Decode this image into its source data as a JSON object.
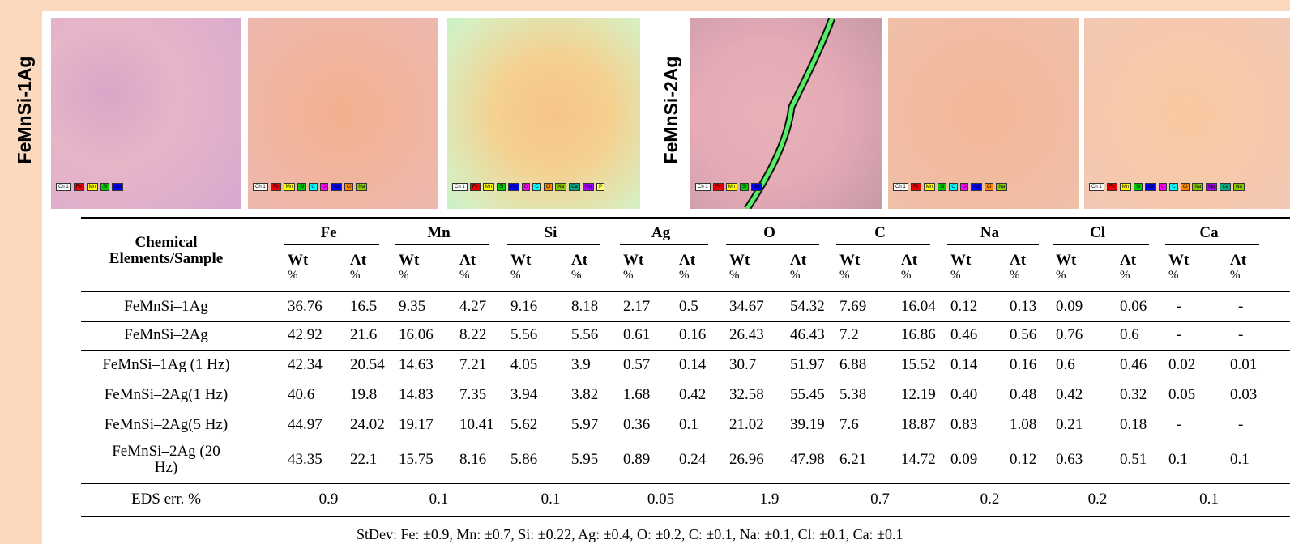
{
  "panels": [
    {
      "label": "FeMnSi-1Ag",
      "images": [
        {
          "legend": [
            "Ch 1",
            "Fe",
            "Mn",
            "Si",
            "Ag"
          ]
        },
        {
          "legend": [
            "Ch 1",
            "Fe",
            "Mn",
            "Si",
            "C",
            "O",
            "Ag",
            "Cl",
            "Na"
          ]
        },
        {
          "legend": [
            "Ch 1",
            "Fe",
            "Mn",
            "Si",
            "Ag",
            "O",
            "C",
            "Cl",
            "Na",
            "Ca",
            "Mg",
            "P"
          ]
        }
      ]
    },
    {
      "label": "FeMnSi-2Ag",
      "images": [
        {
          "legend": [
            "Ch 1",
            "Fe",
            "Mn",
            "Si",
            "Ag"
          ]
        },
        {
          "legend": [
            "Ch 1",
            "Fe",
            "Mn",
            "Si",
            "C",
            "O",
            "Ag",
            "Cl",
            "Na"
          ]
        },
        {
          "legend": [
            "Ch 1",
            "Fe",
            "Mn",
            "Si",
            "Ag",
            "O",
            "C",
            "Cl",
            "Na",
            "Mg",
            "Ca",
            "Na"
          ]
        }
      ]
    }
  ],
  "table": {
    "corner": "Chemical Elements/Sample",
    "elements": [
      "Fe",
      "Mn",
      "Si",
      "Ag",
      "O",
      "C",
      "Na",
      "Cl",
      "Ca"
    ],
    "sub": [
      "Wt",
      "At"
    ],
    "sub_unit": "%",
    "rows": [
      {
        "sample": "FeMnSi–1Ag",
        "cells": [
          "36.76",
          "16.5",
          "9.35",
          "4.27",
          "9.16",
          "8.18",
          "2.17",
          "0.5",
          "34.67",
          "54.32",
          "7.69",
          "16.04",
          "0.12",
          "0.13",
          "0.09",
          "0.06",
          "-",
          "-"
        ]
      },
      {
        "sample": "FeMnSi–2Ag",
        "cells": [
          "42.92",
          "21.6",
          "16.06",
          "8.22",
          "5.56",
          "5.56",
          "0.61",
          "0.16",
          "26.43",
          "46.43",
          "7.2",
          "16.86",
          "0.46",
          "0.56",
          "0.76",
          "0.6",
          "-",
          "-"
        ]
      },
      {
        "sample": "FeMnSi–1Ag (1 Hz)",
        "cells": [
          "42.34",
          "20.54",
          "14.63",
          "7.21",
          "4.05",
          "3.9",
          "0.57",
          "0.14",
          "30.7",
          "51.97",
          "6.88",
          "15.52",
          "0.14",
          "0.16",
          "0.6",
          "0.46",
          "0.02",
          "0.01"
        ]
      },
      {
        "sample": "FeMnSi–2Ag(1 Hz)",
        "cells": [
          "40.6",
          "19.8",
          "14.83",
          "7.35",
          "3.94",
          "3.82",
          "1.68",
          "0.42",
          "32.58",
          "55.45",
          "5.38",
          "12.19",
          "0.40",
          "0.48",
          "0.42",
          "0.32",
          "0.05",
          "0.03"
        ]
      },
      {
        "sample": "FeMnSi–2Ag(5 Hz)",
        "cells": [
          "44.97",
          "24.02",
          "19.17",
          "10.41",
          "5.62",
          "5.97",
          "0.36",
          "0.1",
          "21.02",
          "39.19",
          "7.6",
          "18.87",
          "0.83",
          "1.08",
          "0.21",
          "0.18",
          "-",
          "-"
        ]
      },
      {
        "sample": "FeMnSi–2Ag (20 Hz)",
        "cells": [
          "43.35",
          "22.1",
          "15.75",
          "8.16",
          "5.86",
          "5.95",
          "0.89",
          "0.24",
          "26.96",
          "47.98",
          "6.21",
          "14.72",
          "0.09",
          "0.12",
          "0.63",
          "0.51",
          "0.1",
          "0.1"
        ]
      }
    ],
    "error_row": {
      "label": "EDS err. %",
      "values": [
        "0.9",
        "0.1",
        "0.1",
        "0.05",
        "1.9",
        "0.7",
        "0.2",
        "0.2",
        "0.1"
      ]
    }
  },
  "footnote": "StDev: Fe: ±0.9, Mn: ±0.7, Si: ±0.22, Ag: ±0.4, O: ±0.2, C: ±0.1, Na: ±0.1, Cl: ±0.1, Ca: ±0.1"
}
